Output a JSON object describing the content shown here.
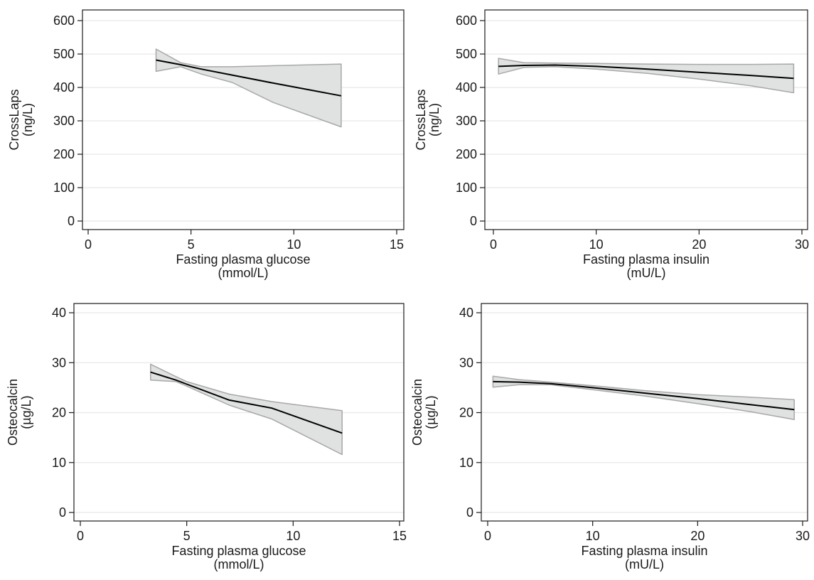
{
  "chart_data": [
    {
      "type": "line",
      "title": "",
      "xlabel": [
        "Fasting plasma glucose",
        "(mmol/L)"
      ],
      "ylabel": [
        "CrossLaps",
        "(ng/L)"
      ],
      "xlim": [
        0,
        15
      ],
      "ylim": [
        0,
        600
      ],
      "xticks": [
        0,
        5,
        10,
        15
      ],
      "yticks": [
        0,
        100,
        200,
        300,
        400,
        500,
        600
      ],
      "grid": true,
      "legend": "none",
      "series": [
        {
          "x": [
            3.3,
            4.5,
            5.5,
            7,
            9,
            12.3
          ],
          "values": [
            482,
            468,
            455,
            437,
            413,
            375
          ],
          "ci_lower": [
            448,
            462,
            440,
            415,
            355,
            282
          ],
          "ci_upper": [
            515,
            474,
            462,
            462,
            465,
            470
          ]
        }
      ]
    },
    {
      "type": "line",
      "title": "",
      "xlabel": [
        "Fasting plasma insulin",
        "(mU/L)"
      ],
      "ylabel": [
        "CrossLaps",
        "(ng/L)"
      ],
      "xlim": [
        0,
        30
      ],
      "ylim": [
        0,
        600
      ],
      "xticks": [
        0,
        10,
        20,
        30
      ],
      "yticks": [
        0,
        100,
        200,
        300,
        400,
        500,
        600
      ],
      "grid": true,
      "legend": "none",
      "series": [
        {
          "x": [
            0.5,
            3,
            6,
            10,
            15,
            20,
            25,
            29.2
          ],
          "values": [
            463,
            466,
            467,
            463,
            455,
            445,
            436,
            427
          ],
          "ci_lower": [
            440,
            460,
            462,
            455,
            442,
            425,
            405,
            384
          ],
          "ci_upper": [
            487,
            474,
            473,
            472,
            470,
            469,
            469,
            470
          ]
        }
      ]
    },
    {
      "type": "line",
      "title": "",
      "xlabel": [
        "Fasting plasma glucose",
        "(mmol/L)"
      ],
      "ylabel": [
        "Osteocalcin",
        "(µg/L)"
      ],
      "xlim": [
        0,
        15
      ],
      "ylim": [
        0,
        40
      ],
      "xticks": [
        0,
        5,
        10,
        15
      ],
      "yticks": [
        0,
        10,
        20,
        30,
        40
      ],
      "grid": true,
      "legend": "none",
      "series": [
        {
          "x": [
            3.3,
            4.5,
            5,
            7,
            9,
            12.3
          ],
          "values": [
            28.1,
            26.5,
            25.7,
            22.5,
            20.9,
            15.9
          ],
          "ci_lower": [
            26.5,
            26.2,
            25.3,
            21.5,
            18.7,
            11.6
          ],
          "ci_upper": [
            29.7,
            27.2,
            26.2,
            23.7,
            22.2,
            20.4
          ]
        }
      ]
    },
    {
      "type": "line",
      "title": "",
      "xlabel": [
        "Fasting plasma insulin",
        "(mU/L)"
      ],
      "ylabel": [
        "Osteocalcin",
        "(µg/L)"
      ],
      "xlim": [
        0,
        30
      ],
      "ylim": [
        0,
        40
      ],
      "xticks": [
        0,
        10,
        20,
        30
      ],
      "yticks": [
        0,
        10,
        20,
        30,
        40
      ],
      "grid": true,
      "legend": "none",
      "series": [
        {
          "x": [
            0.5,
            3,
            6,
            10,
            15,
            20,
            25,
            29.2
          ],
          "values": [
            26.2,
            26.1,
            25.8,
            25.0,
            23.9,
            22.8,
            21.6,
            20.6
          ],
          "ci_lower": [
            25.1,
            25.6,
            25.6,
            24.6,
            23.3,
            21.8,
            20.2,
            18.6
          ],
          "ci_upper": [
            27.3,
            26.6,
            26.1,
            25.4,
            24.4,
            23.6,
            23.1,
            22.6
          ]
        }
      ]
    }
  ],
  "colors": {
    "fit_line": "#000000",
    "ci_fill": "#dfe2e1",
    "ci_stroke": "#a8a8a8",
    "grid": "#e8e8e8",
    "axis": "#1a1a1a"
  }
}
